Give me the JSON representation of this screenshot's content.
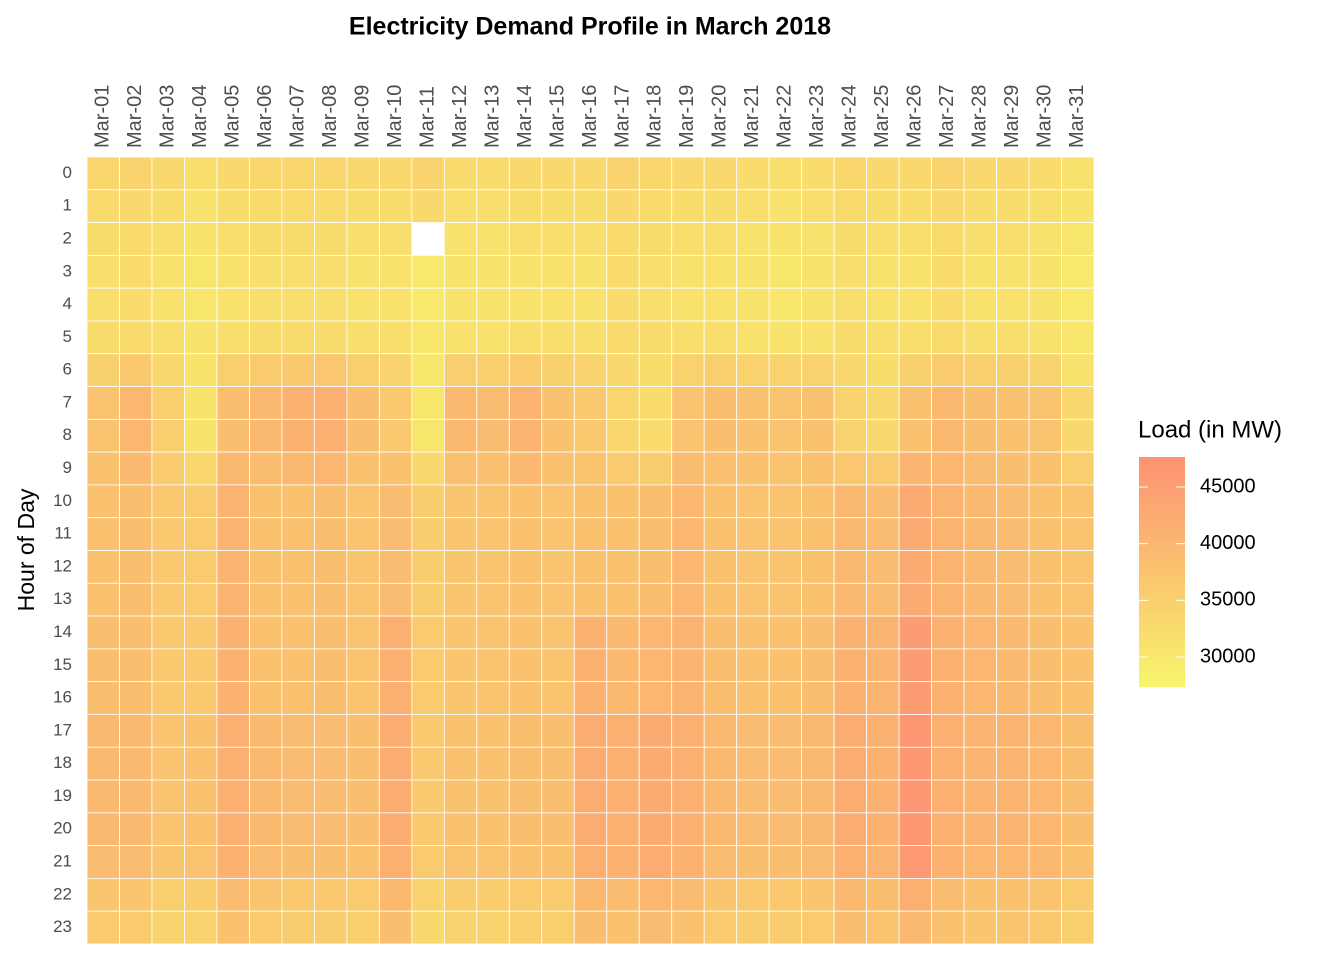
{
  "chart_data": {
    "type": "heatmap",
    "title": "Electricity Demand Profile in March 2018",
    "ylabel": "Hour of Day",
    "categories": [
      "Mar-01",
      "Mar-02",
      "Mar-03",
      "Mar-04",
      "Mar-05",
      "Mar-06",
      "Mar-07",
      "Mar-08",
      "Mar-09",
      "Mar-10",
      "Mar-11",
      "Mar-12",
      "Mar-13",
      "Mar-14",
      "Mar-15",
      "Mar-16",
      "Mar-17",
      "Mar-18",
      "Mar-19",
      "Mar-20",
      "Mar-21",
      "Mar-22",
      "Mar-23",
      "Mar-24",
      "Mar-25",
      "Mar-26",
      "Mar-27",
      "Mar-28",
      "Mar-29",
      "Mar-30",
      "Mar-31"
    ],
    "y_categories": [
      0,
      1,
      2,
      3,
      4,
      5,
      6,
      7,
      8,
      9,
      10,
      11,
      12,
      13,
      14,
      15,
      16,
      17,
      18,
      19,
      20,
      21,
      22,
      23
    ],
    "values": [
      [
        33500,
        32800,
        32300,
        32000,
        32000,
        32300,
        34800,
        37500,
        37500,
        37800,
        38000,
        38000,
        38000,
        38000,
        38500,
        38500,
        38500,
        39500,
        39500,
        39500,
        39500,
        39000,
        37000,
        36000
      ],
      [
        34000,
        33300,
        32800,
        32500,
        32500,
        32800,
        36300,
        40000,
        40000,
        39300,
        38500,
        38500,
        38500,
        38500,
        38500,
        38500,
        38500,
        39500,
        39500,
        39500,
        39500,
        39000,
        37000,
        36000
      ],
      [
        33000,
        32300,
        31800,
        31500,
        31500,
        31800,
        33300,
        35000,
        35000,
        35800,
        36500,
        36500,
        36500,
        36500,
        36500,
        36500,
        36500,
        37500,
        37500,
        37500,
        37500,
        37000,
        35000,
        34000
      ],
      [
        32000,
        31300,
        30800,
        30500,
        30500,
        30800,
        30800,
        31000,
        31000,
        33500,
        36000,
        36000,
        36000,
        36000,
        36500,
        36500,
        36500,
        38000,
        38000,
        38000,
        38000,
        37500,
        35500,
        34500
      ],
      [
        33000,
        32300,
        31800,
        31500,
        31500,
        31800,
        35000,
        38500,
        38500,
        39500,
        40500,
        40500,
        40500,
        40500,
        41000,
        41000,
        41000,
        41500,
        41500,
        41500,
        41500,
        41000,
        39000,
        38000
      ],
      [
        33500,
        32800,
        32300,
        32000,
        32000,
        32300,
        35800,
        39500,
        39500,
        38800,
        38000,
        38000,
        38000,
        38000,
        38000,
        38000,
        38000,
        39500,
        39500,
        39500,
        39500,
        39000,
        37000,
        36000
      ],
      [
        33500,
        32800,
        32300,
        32000,
        32000,
        32300,
        36500,
        41000,
        41000,
        39500,
        38000,
        38000,
        38000,
        38000,
        38000,
        38000,
        38000,
        39000,
        39000,
        39000,
        39000,
        38500,
        36500,
        35500
      ],
      [
        33500,
        32800,
        32300,
        32000,
        32000,
        32300,
        36800,
        41500,
        41500,
        40000,
        38500,
        38500,
        38500,
        38500,
        38500,
        38500,
        38500,
        39000,
        39000,
        39000,
        39000,
        38500,
        36500,
        35500
      ],
      [
        33000,
        32300,
        31800,
        31500,
        31500,
        31800,
        35000,
        38500,
        38500,
        38000,
        37500,
        37500,
        37500,
        37500,
        37500,
        37500,
        37500,
        38500,
        38500,
        38500,
        38500,
        38000,
        36000,
        35000
      ],
      [
        33000,
        32300,
        31800,
        31500,
        31500,
        31800,
        34000,
        36500,
        36500,
        37800,
        39000,
        39000,
        39000,
        39000,
        41500,
        41500,
        41500,
        42000,
        42000,
        42000,
        42000,
        41500,
        39500,
        38500
      ],
      [
        34000,
        33000,
        null,
        30000,
        30000,
        30300,
        30300,
        30500,
        30500,
        33000,
        35500,
        35500,
        35500,
        35500,
        36000,
        36000,
        36000,
        36500,
        36500,
        36500,
        36500,
        36000,
        34000,
        33000
      ],
      [
        32500,
        31800,
        31300,
        31000,
        31000,
        31300,
        35300,
        39500,
        39500,
        38300,
        37000,
        37000,
        37000,
        37000,
        37000,
        37000,
        37000,
        38000,
        38000,
        38000,
        38000,
        37500,
        35500,
        34500
      ],
      [
        32500,
        31800,
        31300,
        31000,
        31000,
        31300,
        35000,
        39000,
        39000,
        38300,
        37500,
        37500,
        37500,
        37500,
        37500,
        37500,
        37500,
        38000,
        38000,
        38000,
        38000,
        37500,
        35500,
        34500
      ],
      [
        33000,
        32300,
        31800,
        31500,
        31500,
        31800,
        36000,
        40500,
        40500,
        39300,
        38000,
        38000,
        38000,
        38000,
        38000,
        38000,
        38000,
        38500,
        38500,
        38500,
        38500,
        38000,
        36000,
        35000
      ],
      [
        33000,
        32300,
        31800,
        31500,
        31500,
        31800,
        34800,
        38000,
        38000,
        37800,
        37500,
        37500,
        37500,
        37500,
        37500,
        37500,
        37500,
        38500,
        38500,
        38500,
        38500,
        38000,
        36000,
        35000
      ],
      [
        33000,
        32300,
        31800,
        31500,
        31500,
        31800,
        34000,
        36500,
        36500,
        37300,
        38000,
        38000,
        38000,
        38000,
        41000,
        41000,
        41000,
        42000,
        42000,
        42000,
        42000,
        41500,
        39500,
        38500
      ],
      [
        34000,
        33300,
        32800,
        32500,
        32500,
        32800,
        33000,
        33500,
        33500,
        35800,
        38000,
        38000,
        38000,
        38000,
        39500,
        39500,
        39500,
        41500,
        41500,
        41500,
        41500,
        41000,
        39000,
        38000
      ],
      [
        33500,
        32800,
        32300,
        32000,
        32000,
        32300,
        32300,
        32500,
        32500,
        35500,
        38500,
        38500,
        38500,
        38500,
        40000,
        40000,
        40000,
        42500,
        42500,
        42500,
        42500,
        42000,
        40000,
        39000
      ],
      [
        33000,
        32300,
        31800,
        31500,
        31500,
        31800,
        34500,
        37500,
        37500,
        38800,
        40000,
        40000,
        40000,
        40000,
        40500,
        40500,
        40500,
        41500,
        41500,
        41500,
        41500,
        41000,
        39000,
        38000
      ],
      [
        33000,
        32300,
        31800,
        31500,
        31500,
        31800,
        35000,
        38500,
        38500,
        38300,
        38000,
        38000,
        38000,
        38000,
        38500,
        38500,
        38500,
        39500,
        39500,
        39500,
        39500,
        39000,
        37000,
        36000
      ],
      [
        32500,
        31800,
        31300,
        31000,
        31000,
        31300,
        34500,
        38000,
        38000,
        37800,
        37500,
        37500,
        37500,
        37500,
        38000,
        38000,
        38000,
        39000,
        39000,
        39000,
        39000,
        38500,
        36500,
        35500
      ],
      [
        32000,
        31300,
        30800,
        30500,
        30500,
        30800,
        34000,
        37500,
        37500,
        37500,
        37500,
        37500,
        37500,
        37500,
        38000,
        38000,
        38000,
        39000,
        39000,
        39000,
        39000,
        38500,
        36500,
        35500
      ],
      [
        32500,
        31800,
        31300,
        31000,
        31000,
        31300,
        34500,
        38000,
        38000,
        38000,
        38000,
        38000,
        38000,
        38000,
        38500,
        38500,
        38500,
        39500,
        39500,
        39500,
        39500,
        39000,
        37000,
        36000
      ],
      [
        33500,
        32800,
        32300,
        32000,
        32000,
        32300,
        33000,
        34000,
        34000,
        36800,
        39500,
        39500,
        39500,
        39500,
        41000,
        41000,
        41000,
        42000,
        42000,
        42000,
        42000,
        41500,
        39500,
        38500
      ],
      [
        33000,
        32300,
        31800,
        31500,
        31500,
        31800,
        32300,
        33000,
        33000,
        36000,
        39000,
        39000,
        39000,
        39000,
        40500,
        40500,
        40500,
        41000,
        41000,
        41000,
        41000,
        40500,
        38500,
        37500
      ],
      [
        33000,
        32300,
        31800,
        31500,
        31500,
        31800,
        34800,
        38000,
        38000,
        40300,
        42500,
        42500,
        42500,
        42500,
        45500,
        45500,
        45500,
        46500,
        46500,
        46500,
        46500,
        46000,
        41500,
        39500
      ],
      [
        34000,
        33300,
        32800,
        32500,
        32500,
        32800,
        36000,
        39500,
        39500,
        40000,
        40500,
        40500,
        40500,
        40500,
        41000,
        41000,
        41000,
        41500,
        41500,
        41500,
        41500,
        41000,
        39000,
        38000
      ],
      [
        33000,
        32300,
        31800,
        31500,
        31500,
        31800,
        35000,
        38500,
        38500,
        39000,
        39500,
        39500,
        39500,
        39500,
        40000,
        40000,
        40000,
        40500,
        40500,
        40500,
        40500,
        40000,
        38000,
        37000
      ],
      [
        33000,
        32300,
        31800,
        31500,
        31500,
        31800,
        34800,
        38000,
        38000,
        38500,
        39000,
        39000,
        39000,
        39000,
        39500,
        39500,
        39500,
        40500,
        40500,
        40500,
        40500,
        40000,
        38000,
        37000
      ],
      [
        32500,
        31800,
        31300,
        31000,
        31000,
        31300,
        34300,
        37500,
        37500,
        37800,
        38000,
        38000,
        38000,
        38000,
        38500,
        38500,
        38500,
        40000,
        40000,
        40000,
        40000,
        39500,
        37500,
        36500
      ],
      [
        31500,
        30800,
        30300,
        30000,
        30000,
        30300,
        31500,
        33000,
        33000,
        35300,
        37500,
        37500,
        37500,
        37500,
        38000,
        38000,
        38000,
        38500,
        38500,
        38500,
        38500,
        38000,
        36000,
        35000
      ]
    ],
    "colorbar": {
      "title": "Load (in MW)",
      "lim": [
        27350,
        47650
      ],
      "ticks": [
        30000,
        35000,
        40000,
        45000
      ],
      "colors": [
        "#f7f56b",
        "#fd9173"
      ]
    }
  }
}
